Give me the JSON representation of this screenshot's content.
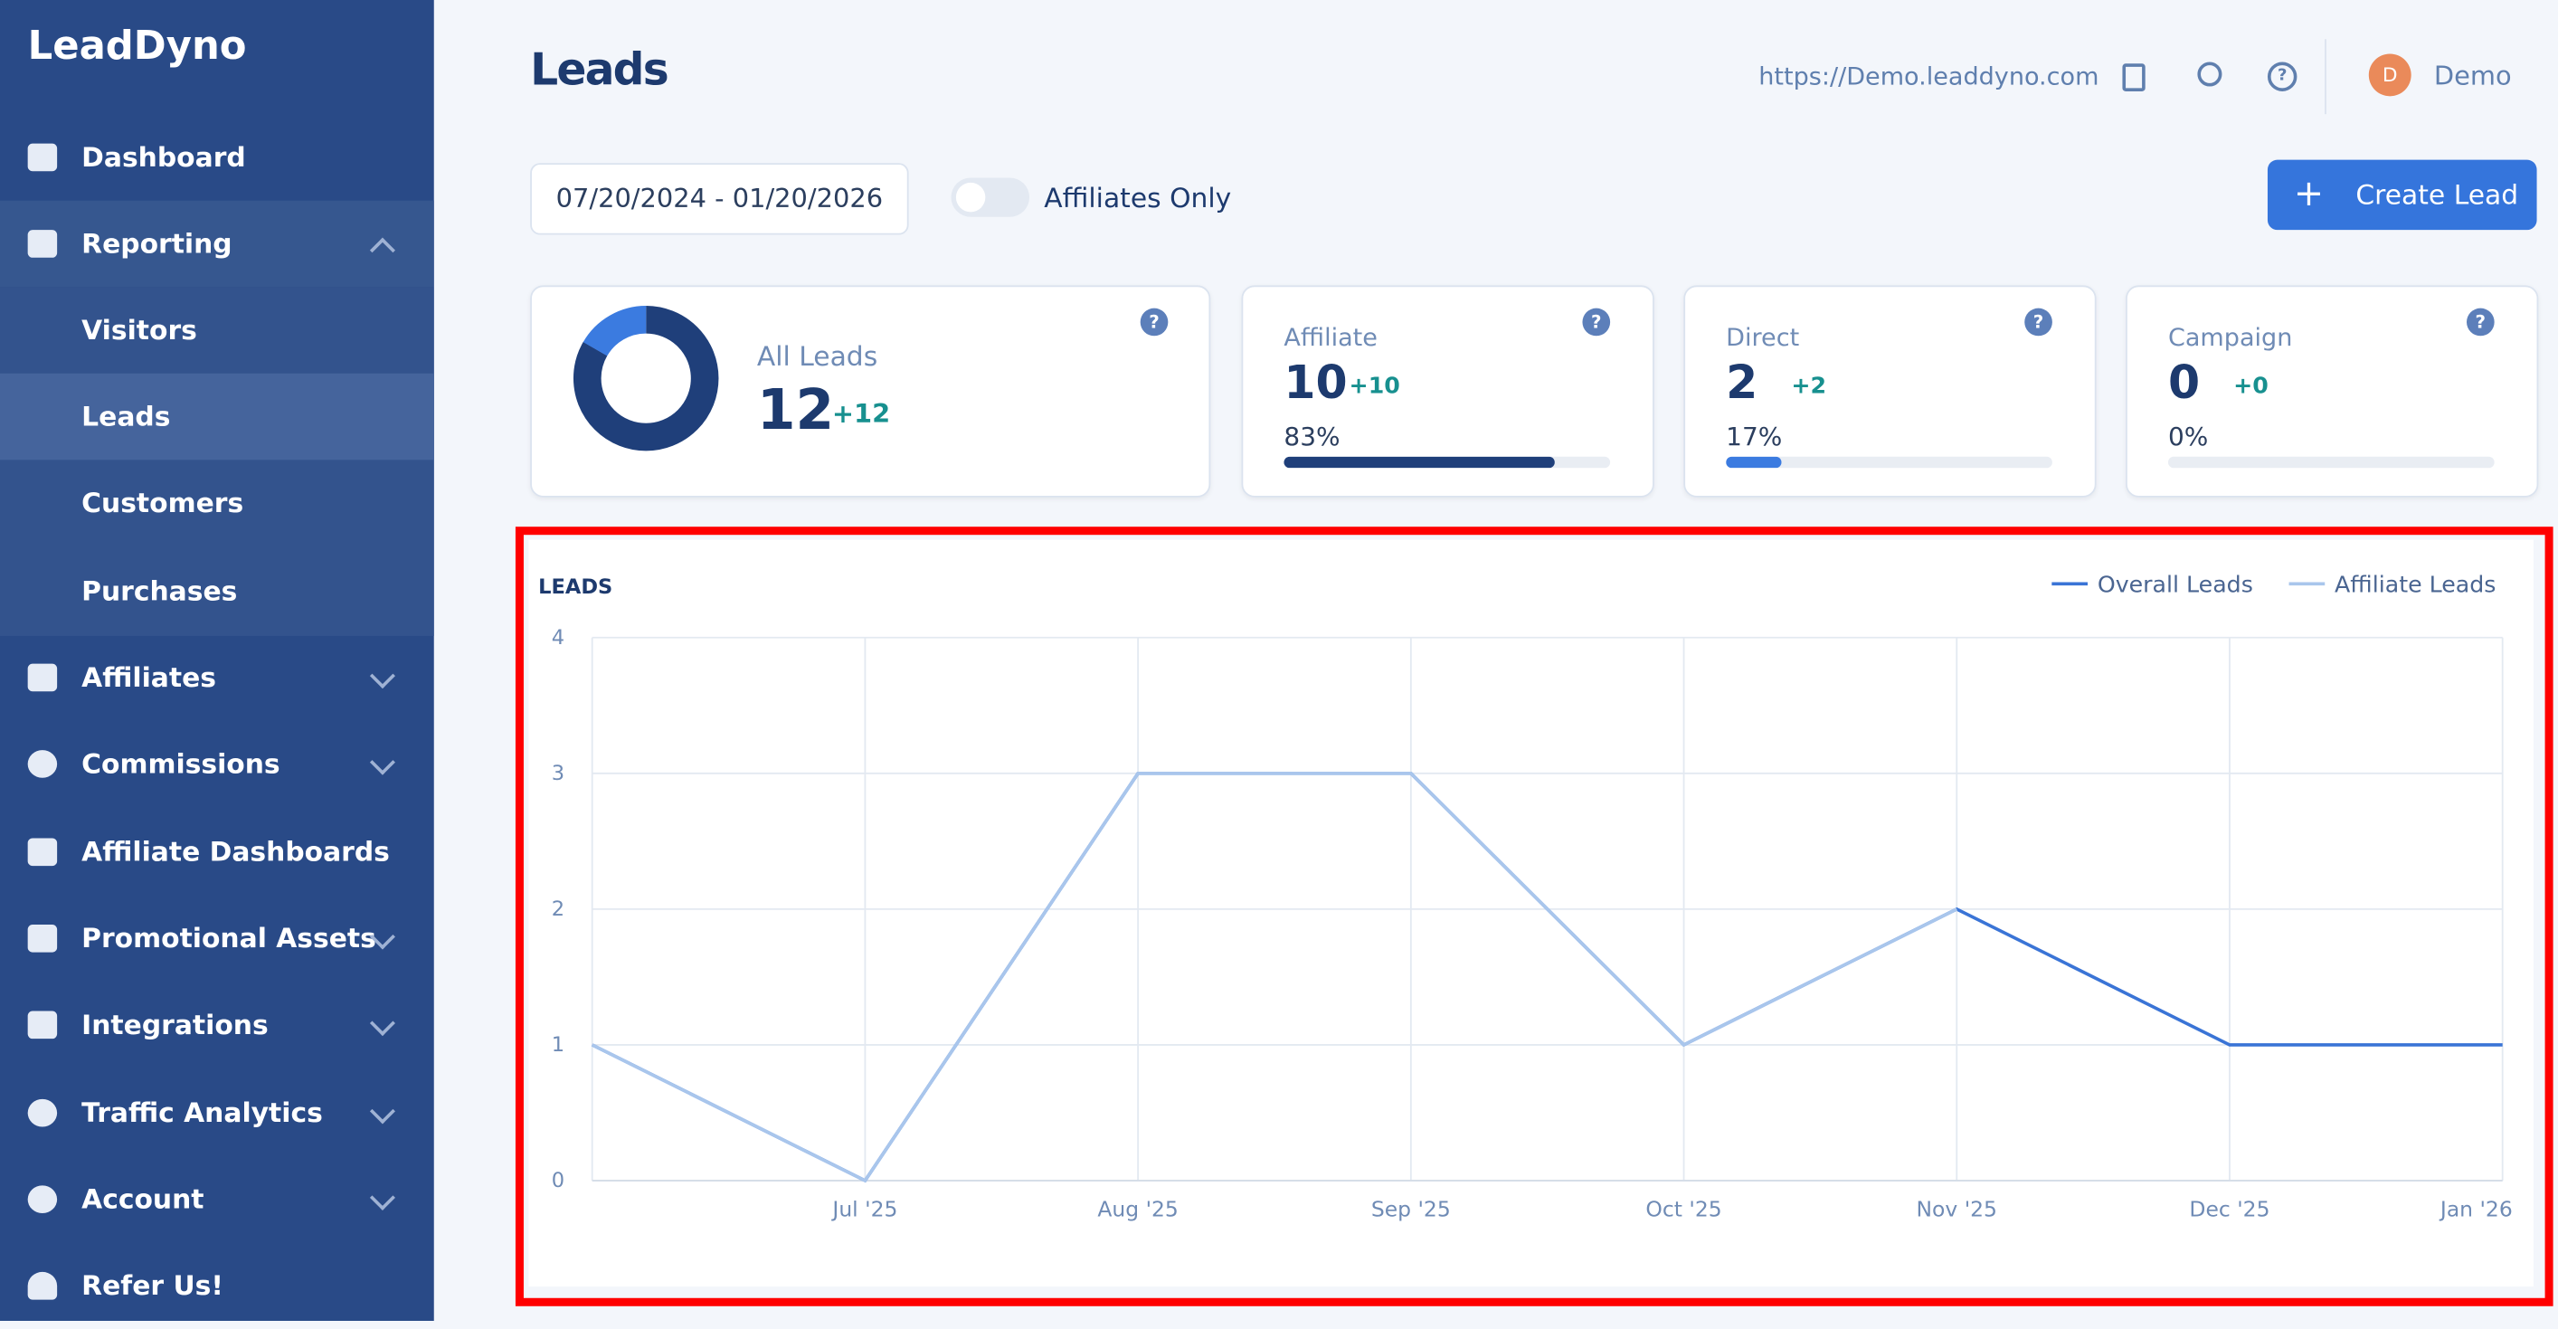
{
  "brand": "LeadDyno",
  "sidebar": [
    "Dashboard",
    "Reporting",
    "Visitors",
    "Leads",
    "Customers",
    "Purchases",
    "Affiliates",
    "Commissions",
    "Affiliate Dashboards",
    "Promotional Assets",
    "Integrations",
    "Traffic Analytics",
    "Account",
    "Refer Us!"
  ],
  "header": {
    "title": "Leads",
    "url": "https://Demo.leaddyno.com",
    "avatar": "D",
    "user": "Demo"
  },
  "toolbar": {
    "date_range": "07/20/2024 - 01/20/2026",
    "toggle": "Affiliates Only",
    "button": "Create Lead"
  },
  "all_leads": {
    "label": "All Leads",
    "value": 12,
    "change": "+12"
  },
  "cards": [
    {
      "label": "Affiliate",
      "value": 10,
      "change": "+10",
      "share": 83,
      "share_label": "83%"
    },
    {
      "label": "Direct",
      "value": 2,
      "change": "+2",
      "share": 17,
      "share_label": "17%"
    },
    {
      "label": "Campaign",
      "value": 0,
      "change": "+0",
      "share": 0,
      "share_label": "0%"
    }
  ],
  "chart_data": {
    "type": "line",
    "title": "LEADS",
    "categories": [
      null,
      "Jul '25",
      "Aug '25",
      "Sep '25",
      "Oct '25",
      "Nov '25",
      "Dec '25",
      "Jan '26"
    ],
    "series": [
      {
        "name": "Overall Leads",
        "color": "#3a74d6",
        "values": [
          1,
          0,
          3,
          3,
          1,
          2,
          1,
          1
        ]
      },
      {
        "name": "Affiliate Leads",
        "color": "#a9c6ec",
        "values": [
          1,
          0,
          3,
          3,
          1,
          2,
          null,
          null
        ]
      }
    ],
    "ylim": [
      0,
      4
    ],
    "yticks": [
      0,
      1,
      2,
      3,
      4
    ],
    "grid": true,
    "legend": "top-right"
  }
}
